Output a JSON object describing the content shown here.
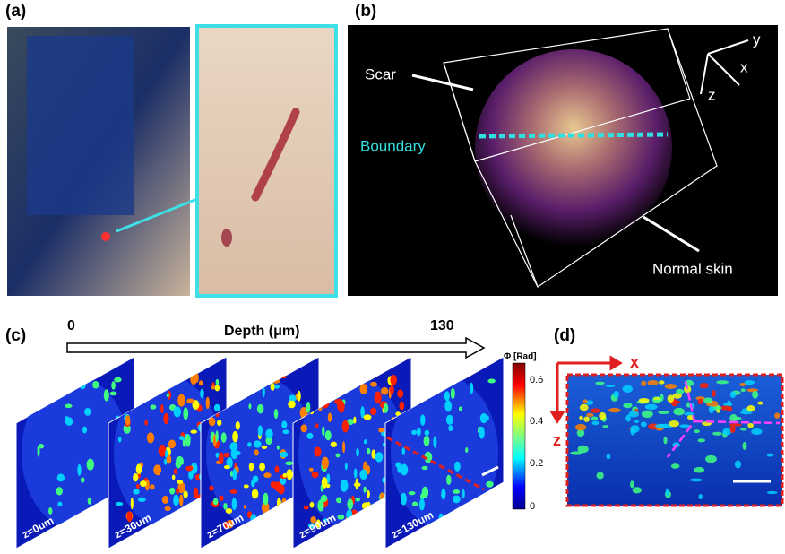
{
  "panels": {
    "a": {
      "label": "(a)"
    },
    "b": {
      "label": "(b)",
      "scar": "Scar",
      "boundary": "Boundary",
      "normal": "Normal skin",
      "axes": [
        "y",
        "x",
        "z"
      ]
    },
    "c": {
      "label": "(c)",
      "depth_start": "0",
      "depth_axis": "Depth (μm)",
      "depth_end": "130",
      "colorbar_title": "Φ [Rad]",
      "colorbar_ticks": [
        "0",
        "0.2",
        "0.4",
        "0.6"
      ],
      "slices": [
        "z=0um",
        "z=30um",
        "z=70um",
        "z=90um",
        "z=130um"
      ]
    },
    "d": {
      "label": "(d)",
      "axes": [
        "x",
        "z"
      ]
    }
  }
}
